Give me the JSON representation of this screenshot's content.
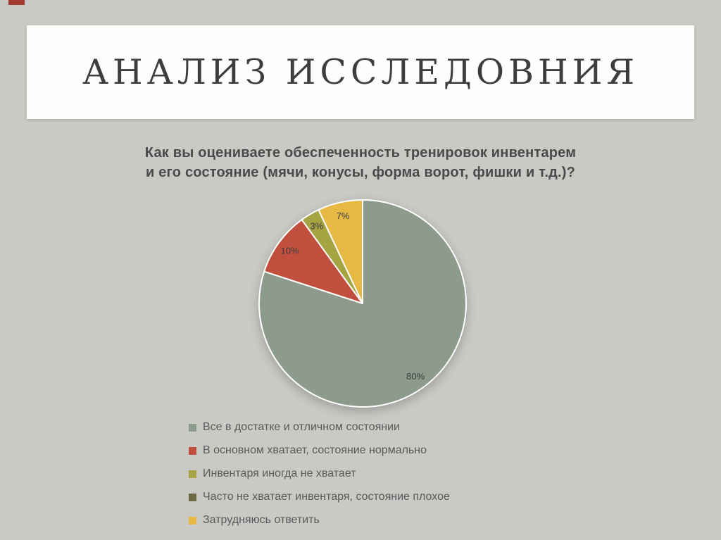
{
  "slide": {
    "title": "АНАЛИЗ ИССЛЕДОВНИЯ",
    "question_line1": "Как вы оцениваете обеспеченность тренировок инвентарем",
    "question_line2": "и его состояние (мячи, конусы, форма ворот, фишки и т.д.)?"
  },
  "chart_data": {
    "type": "pie",
    "title": "Как вы оцениваете обеспеченность тренировок инвентарем и его состояние (мячи, конусы, форма ворот, фишки и т.д.)?",
    "start_angle_deg": 0,
    "direction": "clockwise",
    "legend_position": "bottom",
    "slices": [
      {
        "label": "Все в достатке и отличном состоянии",
        "value": 80,
        "percent_label": "80%",
        "color": "#8C9B8C"
      },
      {
        "label": "В основном хватает, состояние нормально",
        "value": 10,
        "percent_label": "10%",
        "color": "#C0503D"
      },
      {
        "label": "Инвентаря иногда не хватает",
        "value": 3,
        "percent_label": "3%",
        "color": "#A6A442"
      },
      {
        "label": "Часто не хватает инвентаря, состояние плохое",
        "value": 0,
        "percent_label": "",
        "color": "#6C6A41"
      },
      {
        "label": "Затрудняюсь ответить",
        "value": 7,
        "percent_label": "7%",
        "color": "#E6B945"
      }
    ]
  },
  "colors": {
    "background": "#c9c9c6",
    "banner": "#fdfdfc",
    "title_text": "#3d3d3d",
    "body_text": "#595959",
    "corner_accent": "#a23a30",
    "slice_outline": "#ffffff"
  }
}
